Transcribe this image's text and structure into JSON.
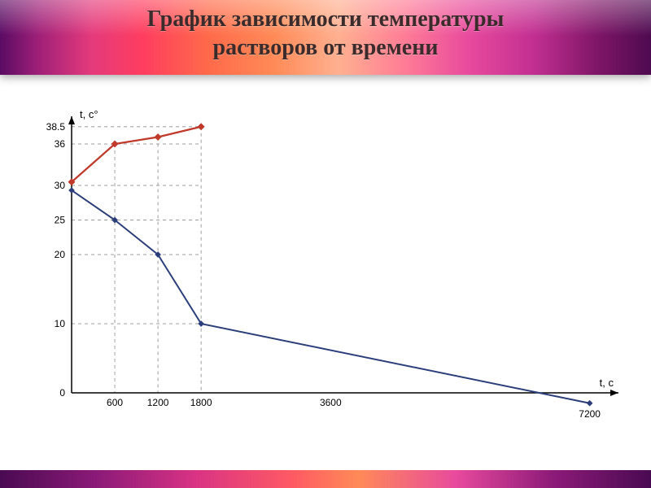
{
  "title_line1": "График зависимости температуры",
  "title_line2": "растворов от времени",
  "chart": {
    "type": "line",
    "x_axis_label": "t, c",
    "y_axis_label": "t, c°",
    "xlim": [
      0,
      7600
    ],
    "ylim": [
      -2,
      40
    ],
    "x_ticks": [
      600,
      1200,
      1800,
      3600,
      7200
    ],
    "x_tick_labels": [
      "600",
      "1200",
      "1800",
      "3600",
      "7200"
    ],
    "y_ticks": [
      0,
      10,
      20,
      25,
      30,
      36,
      38.5
    ],
    "y_tick_labels": [
      "0",
      "10",
      "20",
      "25",
      "30",
      "36",
      "38.5"
    ],
    "axis_color": "#000000",
    "tick_font_size": 12,
    "axis_label_font_size": 13,
    "grid": {
      "color": "#9e9e9e",
      "dash": "4,4",
      "width": 1,
      "horizontal_at": [
        10,
        20,
        25,
        30,
        36,
        38.5
      ],
      "vertical_at": [
        600,
        1200,
        1800
      ]
    },
    "series": [
      {
        "name": "red",
        "color": "#c0392b",
        "line_width": 2.2,
        "marker": "diamond",
        "marker_size": 6,
        "points": [
          {
            "x": 0,
            "y": 30.5
          },
          {
            "x": 600,
            "y": 36
          },
          {
            "x": 1200,
            "y": 37
          },
          {
            "x": 1800,
            "y": 38.5
          }
        ]
      },
      {
        "name": "blue",
        "color": "#2c3e7a",
        "line_width": 2,
        "marker": "diamond",
        "marker_size": 5,
        "points": [
          {
            "x": 0,
            "y": 29.3
          },
          {
            "x": 600,
            "y": 25
          },
          {
            "x": 1200,
            "y": 20
          },
          {
            "x": 1800,
            "y": 10
          },
          {
            "x": 7200,
            "y": -1.5
          }
        ]
      }
    ],
    "background_color": "#ffffff"
  }
}
